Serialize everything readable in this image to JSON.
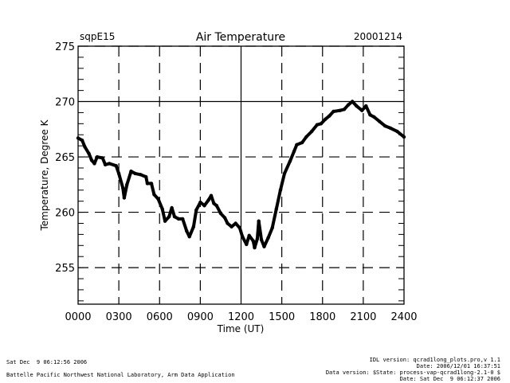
{
  "chart_data": {
    "type": "line",
    "title": "Air Temperature",
    "site_label": "sqpE15",
    "date_label": "20001214",
    "xlabel": "Time (UT)",
    "ylabel": "Temperature, Degree K",
    "xlim": [
      0,
      24
    ],
    "ylim": [
      251.7,
      275
    ],
    "x_ticks": [
      0,
      3,
      6,
      9,
      12,
      15,
      18,
      21,
      24
    ],
    "x_tick_labels": [
      "0000",
      "0300",
      "0600",
      "0900",
      "1200",
      "1500",
      "1800",
      "2100",
      "2400"
    ],
    "y_ticks": [
      255,
      260,
      265,
      270,
      275
    ],
    "y_tick_labels": [
      "255",
      "260",
      "265",
      "270",
      "275"
    ],
    "y_minor_step": 1,
    "grid": true,
    "grid_solid_x": [
      12
    ],
    "grid_solid_y": [
      270
    ],
    "series": [
      {
        "name": "Air Temperature",
        "color": "#000000",
        "x": [
          0.0,
          0.3,
          0.5,
          0.8,
          1.0,
          1.2,
          1.4,
          1.8,
          2.0,
          2.3,
          2.8,
          3.0,
          3.3,
          3.4,
          3.6,
          3.9,
          4.2,
          4.6,
          5.0,
          5.1,
          5.4,
          5.6,
          5.9,
          6.2,
          6.4,
          6.7,
          6.9,
          7.1,
          7.4,
          7.7,
          8.0,
          8.2,
          8.5,
          8.7,
          9.0,
          9.3,
          9.6,
          9.8,
          10.0,
          10.2,
          10.5,
          10.8,
          11.0,
          11.3,
          11.6,
          11.9,
          12.1,
          12.4,
          12.6,
          12.9,
          13.0,
          13.2,
          13.3,
          13.5,
          13.7,
          14.0,
          14.3,
          14.6,
          14.9,
          15.2,
          15.6,
          15.9,
          16.1,
          16.5,
          16.8,
          17.2,
          17.6,
          17.9,
          18.2,
          18.5,
          18.8,
          19.3,
          19.6,
          19.9,
          20.2,
          20.5,
          20.9,
          21.2,
          21.5,
          21.8,
          22.2,
          22.6,
          23.0,
          23.5,
          24.0
        ],
        "y": [
          266.7,
          266.5,
          265.9,
          265.3,
          264.7,
          264.4,
          265.0,
          264.9,
          264.3,
          264.4,
          264.2,
          263.5,
          262.2,
          261.3,
          262.5,
          263.7,
          263.5,
          263.4,
          263.2,
          262.6,
          262.6,
          261.6,
          261.2,
          260.3,
          259.2,
          259.6,
          260.4,
          259.6,
          259.4,
          259.4,
          258.3,
          257.8,
          258.7,
          260.2,
          260.9,
          260.6,
          261.1,
          261.5,
          260.8,
          260.6,
          259.9,
          259.5,
          259.0,
          258.7,
          259.0,
          258.6,
          257.8,
          257.1,
          257.9,
          257.4,
          256.8,
          257.6,
          259.2,
          257.5,
          256.9,
          257.7,
          258.6,
          260.3,
          262.0,
          263.5,
          264.6,
          265.5,
          266.1,
          266.3,
          266.8,
          267.3,
          267.9,
          268.0,
          268.4,
          268.7,
          269.1,
          269.2,
          269.3,
          269.7,
          270.0,
          269.6,
          269.2,
          269.6,
          268.8,
          268.6,
          268.2,
          267.8,
          267.6,
          267.3,
          266.8
        ]
      }
    ]
  },
  "footer": {
    "left_line1": "Sat Dec  9 06:12:56 2006",
    "left_line2": "Battelle Pacific Northwest National Laboratory, Arm Data Application",
    "right_line1": "IDL version: qcrad1long_plots.pro,v 1.1",
    "right_line2": "Date: 2006/12/01 16:37:51",
    "right_line3": "Data version: $State: process-vap-qcrad1long-2.1-0 $",
    "right_line4": "Date: Sat Dec  9 06:12:37 2006"
  }
}
